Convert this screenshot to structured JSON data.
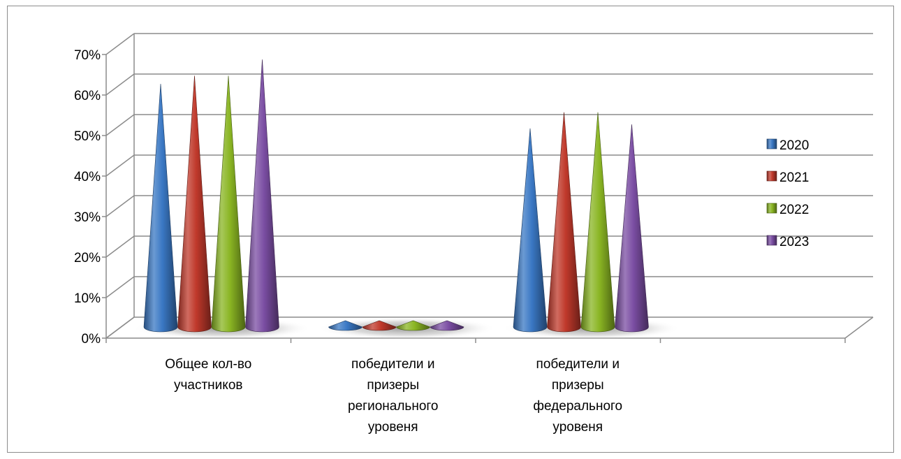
{
  "chart_data": {
    "type": "bar",
    "style": "3d-cone",
    "categories": [
      [
        "Общее кол-во",
        "участников"
      ],
      [
        "победители и",
        "призеры",
        "регионального",
        "уровеня"
      ],
      [
        "победители и",
        "призеры",
        "федерального",
        "уровеня"
      ],
      [
        ""
      ]
    ],
    "series": [
      {
        "name": "2020",
        "color": "#3a78c4",
        "values": [
          60,
          1,
          49,
          null
        ]
      },
      {
        "name": "2021",
        "color": "#c0392b",
        "values": [
          62,
          1,
          53,
          null
        ]
      },
      {
        "name": "2022",
        "color": "#8ab523",
        "values": [
          62,
          0.5,
          53,
          null
        ]
      },
      {
        "name": "2023",
        "color": "#7b4ea3",
        "values": [
          66,
          1,
          50,
          null
        ]
      }
    ],
    "y_ticks": [
      "0%",
      "10%",
      "20%",
      "30%",
      "40%",
      "50%",
      "60%",
      "70%"
    ],
    "ylim": [
      0,
      70
    ],
    "grid": true,
    "legend_position": "right"
  }
}
